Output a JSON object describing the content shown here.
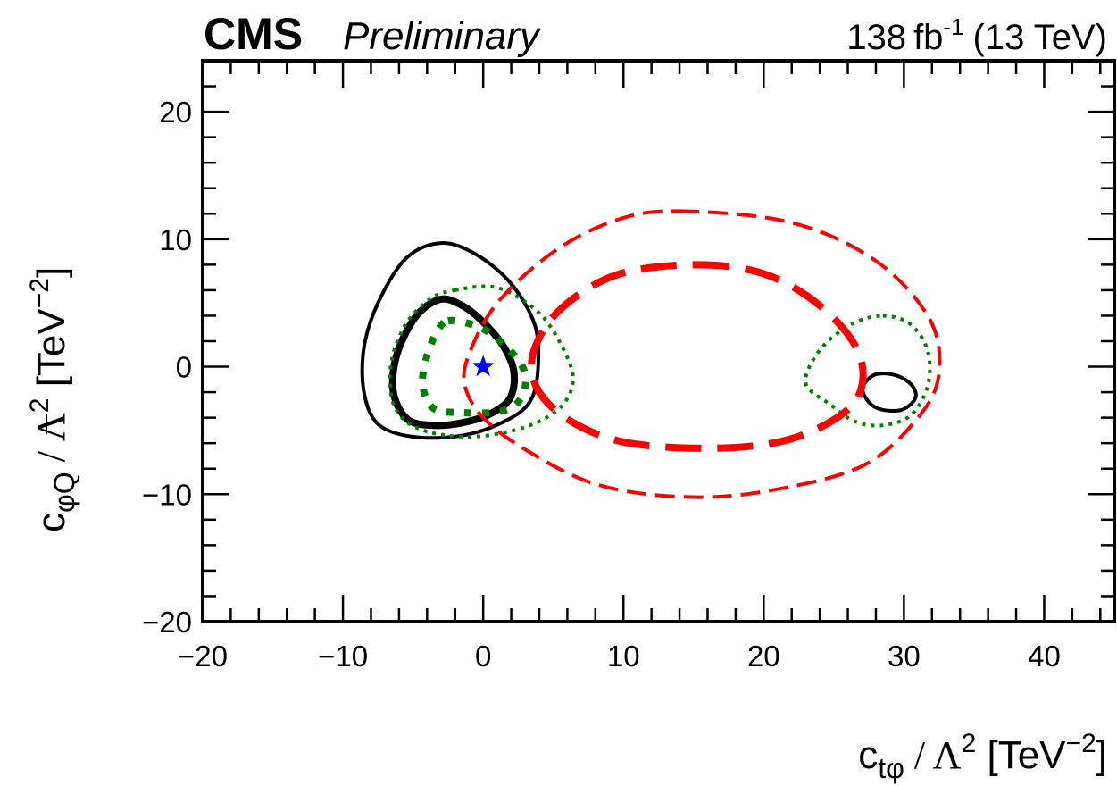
{
  "header": {
    "experiment": "CMS",
    "status": "Preliminary",
    "luminosity": "138",
    "lumi_unit": "fb",
    "lumi_exp": "-1",
    "energy": "(13 TeV)"
  },
  "axes": {
    "x": {
      "coef": "c",
      "sub": "tφ",
      "sep": " / Λ",
      "sq": "2",
      "unit": " [TeV",
      "exp": "−2",
      "close": "]"
    },
    "y": {
      "coef": "c",
      "sub": "φQ",
      "sep": " / Λ",
      "sq": "2",
      "unit": " [TeV",
      "exp": "−2",
      "close": "]"
    }
  },
  "chart_data": {
    "type": "scatter",
    "title": "",
    "xlabel": "c_tφ / Λ^2 [TeV^-2]",
    "ylabel": "c_φQ^- / Λ^2 [TeV^-2]",
    "xlim": [
      -20,
      45
    ],
    "ylim": [
      -20,
      24
    ],
    "xticks": [
      -20,
      -10,
      0,
      10,
      20,
      30,
      40
    ],
    "yticks": [
      -20,
      -10,
      0,
      10,
      20
    ],
    "xtick_labels": [
      "−20",
      "−10",
      "0",
      "10",
      "20",
      "30",
      "40"
    ],
    "ytick_labels": [
      "−20",
      "−10",
      "0",
      "10",
      "20"
    ],
    "grid": false,
    "best_fit": {
      "x": 0,
      "y": 0,
      "marker": "star",
      "color": "#0000ff"
    },
    "series": [
      {
        "style": "solid",
        "weight": "thick",
        "color": "#000000",
        "points": [
          [
            -3,
            5.3
          ],
          [
            -1.5,
            4.8
          ],
          [
            0,
            3.5
          ],
          [
            1.5,
            1.5
          ],
          [
            2.2,
            -0.5
          ],
          [
            1.9,
            -2.5
          ],
          [
            0.5,
            -3.7
          ],
          [
            -1.5,
            -4.4
          ],
          [
            -3.5,
            -4.6
          ],
          [
            -5.3,
            -4.2
          ],
          [
            -6.3,
            -2.5
          ],
          [
            -6.4,
            -0.3
          ],
          [
            -5.8,
            2.0
          ],
          [
            -4.6,
            4.2
          ]
        ]
      },
      {
        "style": "solid",
        "weight": "thin",
        "color": "#000000",
        "points": [
          [
            -3,
            9.7
          ],
          [
            -0.5,
            8.8
          ],
          [
            2,
            6.5
          ],
          [
            3.7,
            3.2
          ],
          [
            3.9,
            -0.3
          ],
          [
            3.3,
            -2.8
          ],
          [
            1.5,
            -4.3
          ],
          [
            -1.5,
            -5.4
          ],
          [
            -5,
            -5.5
          ],
          [
            -7.5,
            -4.5
          ],
          [
            -8.5,
            -2
          ],
          [
            -8.5,
            1.5
          ],
          [
            -7.5,
            5
          ],
          [
            -5.5,
            8.5
          ]
        ]
      },
      {
        "style": "solid",
        "weight": "thin",
        "color": "#000000",
        "points": [
          [
            28,
            -0.6
          ],
          [
            29.5,
            -0.7
          ],
          [
            30.6,
            -1.5
          ],
          [
            30.8,
            -2.5
          ],
          [
            29.8,
            -3.4
          ],
          [
            28.2,
            -3.3
          ],
          [
            27.3,
            -2.5
          ],
          [
            27.1,
            -1.5
          ]
        ]
      },
      {
        "style": "dotted",
        "weight": "thick",
        "color": "#007f00",
        "points": [
          [
            -2.5,
            3.6
          ],
          [
            -0.5,
            3.2
          ],
          [
            1,
            2.2
          ],
          [
            2.7,
            0.2
          ],
          [
            3.0,
            -1.5
          ],
          [
            2.2,
            -3.1
          ],
          [
            0.5,
            -3.6
          ],
          [
            -1.5,
            -3.6
          ],
          [
            -3.5,
            -3.3
          ],
          [
            -4.3,
            -1.6
          ],
          [
            -4.1,
            0.5
          ],
          [
            -3.4,
            2.5
          ]
        ]
      },
      {
        "style": "dotted",
        "weight": "thin",
        "color": "#007f00",
        "points": [
          [
            -2,
            6
          ],
          [
            1,
            6.2
          ],
          [
            4,
            4.2
          ],
          [
            5.8,
            1.2
          ],
          [
            6.4,
            -1.2
          ],
          [
            5.4,
            -3.3
          ],
          [
            2.8,
            -4.8
          ],
          [
            -1,
            -5.5
          ],
          [
            -4.5,
            -4.9
          ],
          [
            -6.3,
            -3.2
          ],
          [
            -6.6,
            0
          ],
          [
            -5.6,
            3.2
          ],
          [
            -3.8,
            5.3
          ]
        ]
      },
      {
        "style": "dotted",
        "weight": "thin",
        "color": "#007f00",
        "points": [
          [
            28.5,
            4
          ],
          [
            30.5,
            3.3
          ],
          [
            31.7,
            1.2
          ],
          [
            31.7,
            -1.5
          ],
          [
            30.5,
            -3.8
          ],
          [
            28.5,
            -4.6
          ],
          [
            26.5,
            -4.3
          ],
          [
            24.8,
            -3
          ],
          [
            23,
            -1.3
          ],
          [
            24,
            1.3
          ],
          [
            26.2,
            3.3
          ]
        ]
      },
      {
        "style": "dashed",
        "weight": "thick",
        "color": "#ff0000",
        "points": [
          [
            15,
            8
          ],
          [
            20,
            7.3
          ],
          [
            24,
            4.8
          ],
          [
            26.6,
            1.5
          ],
          [
            27,
            -1.5
          ],
          [
            25.5,
            -3.8
          ],
          [
            21.5,
            -5.8
          ],
          [
            16,
            -6.4
          ],
          [
            10,
            -5.9
          ],
          [
            6,
            -4.1
          ],
          [
            3.8,
            -1.6
          ],
          [
            3.6,
            1.2
          ],
          [
            5.5,
            4.5
          ],
          [
            9.5,
            7.2
          ]
        ]
      },
      {
        "style": "dashed",
        "weight": "thin",
        "color": "#ff0000",
        "points": [
          [
            14,
            12.2
          ],
          [
            22,
            11.3
          ],
          [
            28,
            8.3
          ],
          [
            31.8,
            3.8
          ],
          [
            32.5,
            -0.5
          ],
          [
            31,
            -4
          ],
          [
            27,
            -7.8
          ],
          [
            20,
            -9.8
          ],
          [
            14,
            -10.2
          ],
          [
            8,
            -9.2
          ],
          [
            3,
            -6.5
          ],
          [
            0,
            -4
          ],
          [
            -1.3,
            -1.5
          ],
          [
            -1,
            1
          ],
          [
            1,
            5
          ],
          [
            5,
            9
          ],
          [
            9.5,
            11.5
          ]
        ]
      }
    ]
  }
}
